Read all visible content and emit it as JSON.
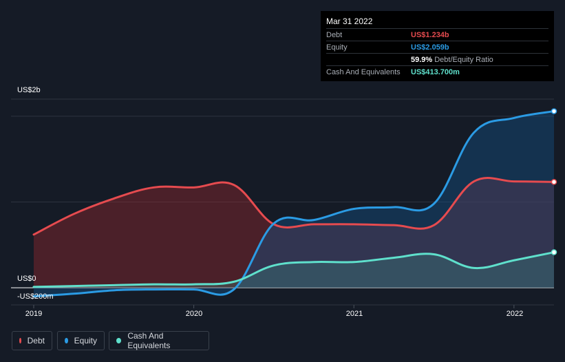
{
  "tooltip": {
    "date": "Mar 31 2022",
    "rows": [
      {
        "label": "Debt",
        "value": "US$1.234b",
        "color": "#e64b4f"
      },
      {
        "label": "Equity",
        "value": "US$2.059b",
        "color": "#2b9be4"
      },
      {
        "label": "",
        "value": "59.9%",
        "sub": "Debt/Equity Ratio",
        "color": "#ffffff"
      },
      {
        "label": "Cash And Equivalents",
        "value": "US$413.700m",
        "color": "#5fe0cc"
      }
    ]
  },
  "legend": [
    {
      "label": "Debt",
      "color": "#e64b4f"
    },
    {
      "label": "Equity",
      "color": "#2b9be4"
    },
    {
      "label": "Cash And Equivalents",
      "color": "#5fe0cc"
    }
  ],
  "chart_data": {
    "type": "area",
    "title": "",
    "xlabel": "",
    "ylabel": "",
    "x_ticks": [
      "2019",
      "2020",
      "2021",
      "2022"
    ],
    "y_ticks": [
      {
        "label": "US$2b",
        "value": 2.0
      },
      {
        "label": "US$0",
        "value": 0
      },
      {
        "label": "-US$200m",
        "value": -0.2
      }
    ],
    "ylim": [
      -0.2,
      2.2
    ],
    "xlim": [
      2019.0,
      2022.25
    ],
    "series": [
      {
        "name": "Debt",
        "color": "#e64b4f",
        "x": [
          2019.0,
          2019.25,
          2019.5,
          2019.75,
          2020.0,
          2020.25,
          2020.5,
          2020.75,
          2021.0,
          2021.25,
          2021.5,
          2021.75,
          2022.0,
          2022.25
        ],
        "values": [
          0.62,
          0.86,
          1.04,
          1.17,
          1.17,
          1.2,
          0.74,
          0.74,
          0.74,
          0.73,
          0.73,
          1.24,
          1.24,
          1.234
        ]
      },
      {
        "name": "Equity",
        "color": "#2b9be4",
        "x": [
          2019.0,
          2019.25,
          2019.5,
          2019.75,
          2020.0,
          2020.25,
          2020.5,
          2020.75,
          2021.0,
          2021.25,
          2021.5,
          2021.75,
          2022.0,
          2022.25
        ],
        "values": [
          -0.1,
          -0.07,
          -0.03,
          -0.02,
          -0.02,
          -0.02,
          0.75,
          0.79,
          0.92,
          0.94,
          0.98,
          1.81,
          1.98,
          2.059
        ]
      },
      {
        "name": "Cash And Equivalents",
        "color": "#5fe0cc",
        "x": [
          2019.0,
          2019.25,
          2019.5,
          2019.75,
          2020.0,
          2020.25,
          2020.5,
          2020.75,
          2021.0,
          2021.25,
          2021.5,
          2021.75,
          2022.0,
          2022.25
        ],
        "values": [
          0.01,
          0.02,
          0.03,
          0.04,
          0.04,
          0.07,
          0.26,
          0.3,
          0.3,
          0.35,
          0.39,
          0.23,
          0.32,
          0.4137
        ]
      }
    ]
  }
}
